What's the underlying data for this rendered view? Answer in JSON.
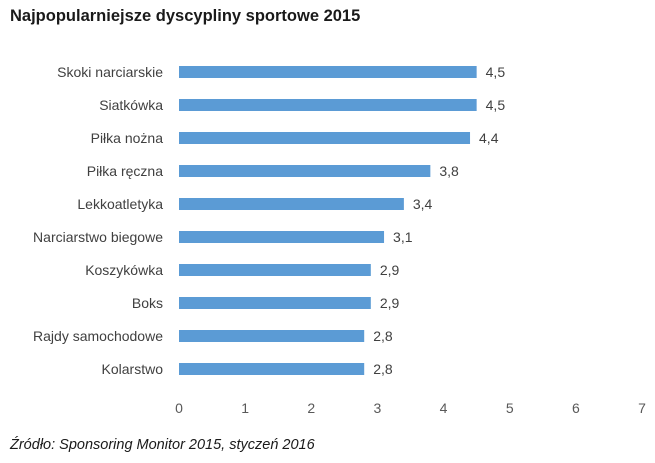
{
  "chart_data": {
    "type": "bar",
    "orientation": "horizontal",
    "title": "Najpopularniejsze dyscypliny sportowe 2015",
    "categories": [
      "Skoki narciarskie",
      "Siatkówka",
      "Piłka nożna",
      "Piłka ręczna",
      "Lekkoatletyka",
      "Narciarstwo biegowe",
      "Koszykówka",
      "Boks",
      "Rajdy samochodowe",
      "Kolarstwo"
    ],
    "values": [
      4.5,
      4.5,
      4.4,
      3.8,
      3.4,
      3.1,
      2.9,
      2.9,
      2.8,
      2.8
    ],
    "value_labels": [
      "4,5",
      "4,5",
      "4,4",
      "3,8",
      "3,4",
      "3,1",
      "2,9",
      "2,9",
      "2,8",
      "2,8"
    ],
    "xlim": [
      0,
      7
    ],
    "xticks": [
      "0",
      "1",
      "2",
      "3",
      "4",
      "5",
      "6",
      "7"
    ],
    "grid": false,
    "xlabel": "",
    "ylabel": "",
    "bar_color": "#5b9bd5",
    "text_color": "#404040"
  },
  "source": "Źródło: Sponsoring Monitor 2015, styczeń 2016"
}
